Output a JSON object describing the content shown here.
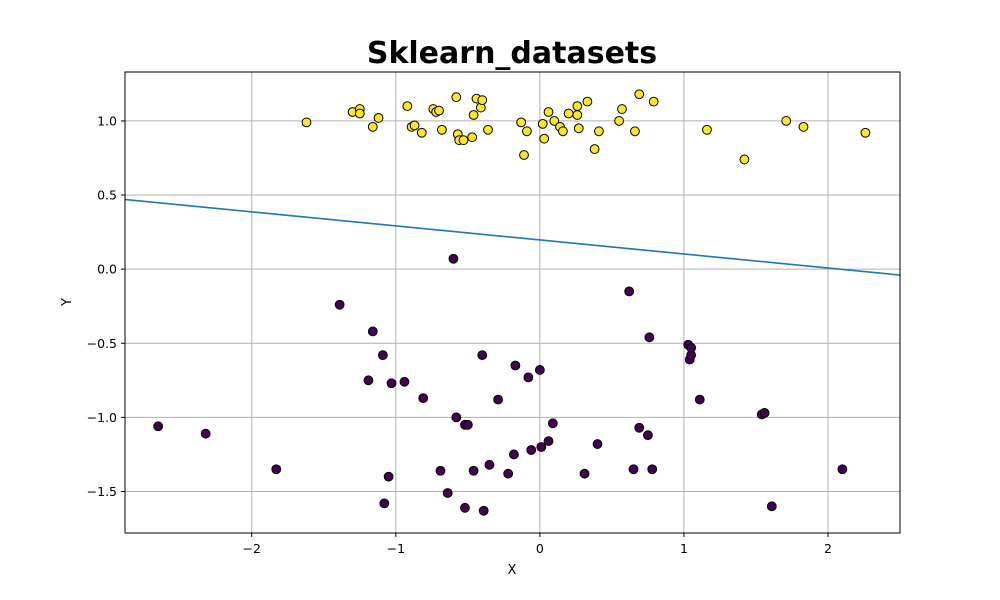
{
  "chart_data": {
    "type": "scatter",
    "title": "Sklearn_datasets",
    "xlabel": "X",
    "ylabel": "Y",
    "xlim": [
      -2.88,
      2.5
    ],
    "ylim": [
      -1.78,
      1.33
    ],
    "xticks": [
      -2,
      -1,
      0,
      1,
      2
    ],
    "xtick_labels": [
      "−2",
      "−1",
      "0",
      "1",
      "2"
    ],
    "yticks": [
      -1.5,
      -1.0,
      -0.5,
      0.0,
      0.5,
      1.0
    ],
    "ytick_labels": [
      "−1.5",
      "−1.0",
      "−0.5",
      "0.0",
      "0.5",
      "1.0"
    ],
    "grid": true,
    "series": [
      {
        "class": 1,
        "color": "#fde725",
        "points": [
          [
            -1.62,
            0.99
          ],
          [
            -1.3,
            1.06
          ],
          [
            -1.25,
            1.08
          ],
          [
            -1.25,
            1.05
          ],
          [
            -1.16,
            0.96
          ],
          [
            -1.12,
            1.02
          ],
          [
            -0.92,
            1.1
          ],
          [
            -0.89,
            0.96
          ],
          [
            -0.87,
            0.97
          ],
          [
            -0.82,
            0.92
          ],
          [
            -0.74,
            1.08
          ],
          [
            -0.72,
            1.06
          ],
          [
            -0.7,
            1.07
          ],
          [
            -0.68,
            0.94
          ],
          [
            -0.58,
            1.16
          ],
          [
            -0.57,
            0.91
          ],
          [
            -0.56,
            0.87
          ],
          [
            -0.53,
            0.87
          ],
          [
            -0.47,
            0.89
          ],
          [
            -0.46,
            1.04
          ],
          [
            -0.44,
            1.15
          ],
          [
            -0.41,
            1.09
          ],
          [
            -0.4,
            1.14
          ],
          [
            -0.36,
            0.94
          ],
          [
            -0.13,
            0.99
          ],
          [
            -0.11,
            0.77
          ],
          [
            -0.09,
            0.93
          ],
          [
            0.02,
            0.98
          ],
          [
            0.03,
            0.88
          ],
          [
            0.06,
            1.06
          ],
          [
            0.1,
            1.0
          ],
          [
            0.14,
            0.96
          ],
          [
            0.16,
            0.93
          ],
          [
            0.2,
            1.05
          ],
          [
            0.26,
            1.1
          ],
          [
            0.26,
            1.04
          ],
          [
            0.27,
            0.95
          ],
          [
            0.33,
            1.13
          ],
          [
            0.38,
            0.81
          ],
          [
            0.41,
            0.93
          ],
          [
            0.55,
            1.0
          ],
          [
            0.57,
            1.08
          ],
          [
            0.66,
            0.93
          ],
          [
            0.69,
            1.18
          ],
          [
            0.79,
            1.13
          ],
          [
            1.16,
            0.94
          ],
          [
            1.42,
            0.74
          ],
          [
            1.71,
            1.0
          ],
          [
            1.83,
            0.96
          ],
          [
            2.26,
            0.92
          ]
        ]
      },
      {
        "class": 0,
        "color": "#440154",
        "points": [
          [
            -2.65,
            -1.06
          ],
          [
            -2.32,
            -1.11
          ],
          [
            -1.83,
            -1.35
          ],
          [
            -1.39,
            -0.24
          ],
          [
            -1.16,
            -0.42
          ],
          [
            -1.19,
            -0.75
          ],
          [
            -1.09,
            -0.58
          ],
          [
            -1.08,
            -1.58
          ],
          [
            -1.05,
            -1.4
          ],
          [
            -1.03,
            -0.77
          ],
          [
            -0.94,
            -0.76
          ],
          [
            -0.81,
            -0.87
          ],
          [
            -0.69,
            -1.36
          ],
          [
            -0.64,
            -1.51
          ],
          [
            -0.6,
            0.07
          ],
          [
            -0.58,
            -1.0
          ],
          [
            -0.52,
            -1.05
          ],
          [
            -0.5,
            -1.05
          ],
          [
            -0.52,
            -1.61
          ],
          [
            -0.46,
            -1.36
          ],
          [
            -0.4,
            -0.58
          ],
          [
            -0.39,
            -1.63
          ],
          [
            -0.35,
            -1.32
          ],
          [
            -0.29,
            -0.88
          ],
          [
            -0.22,
            -1.38
          ],
          [
            -0.18,
            -1.25
          ],
          [
            -0.17,
            -0.65
          ],
          [
            -0.08,
            -0.73
          ],
          [
            -0.06,
            -1.22
          ],
          [
            0.0,
            -0.68
          ],
          [
            0.01,
            -1.2
          ],
          [
            0.06,
            -1.16
          ],
          [
            0.09,
            -1.04
          ],
          [
            0.31,
            -1.38
          ],
          [
            0.4,
            -1.18
          ],
          [
            0.62,
            -0.15
          ],
          [
            0.65,
            -1.35
          ],
          [
            0.69,
            -1.07
          ],
          [
            0.75,
            -1.12
          ],
          [
            0.76,
            -0.46
          ],
          [
            0.78,
            -1.35
          ],
          [
            1.03,
            -0.51
          ],
          [
            1.04,
            -0.61
          ],
          [
            1.05,
            -0.58
          ],
          [
            1.05,
            -0.53
          ],
          [
            1.11,
            -0.88
          ],
          [
            1.54,
            -0.98
          ],
          [
            1.56,
            -0.97
          ],
          [
            1.61,
            -1.6
          ],
          [
            2.1,
            -1.35
          ]
        ]
      }
    ],
    "decision_line": {
      "color": "#1f77b4",
      "points": [
        [
          -2.88,
          0.47
        ],
        [
          2.5,
          -0.04
        ]
      ]
    },
    "marker_edge_color": "#000000"
  }
}
